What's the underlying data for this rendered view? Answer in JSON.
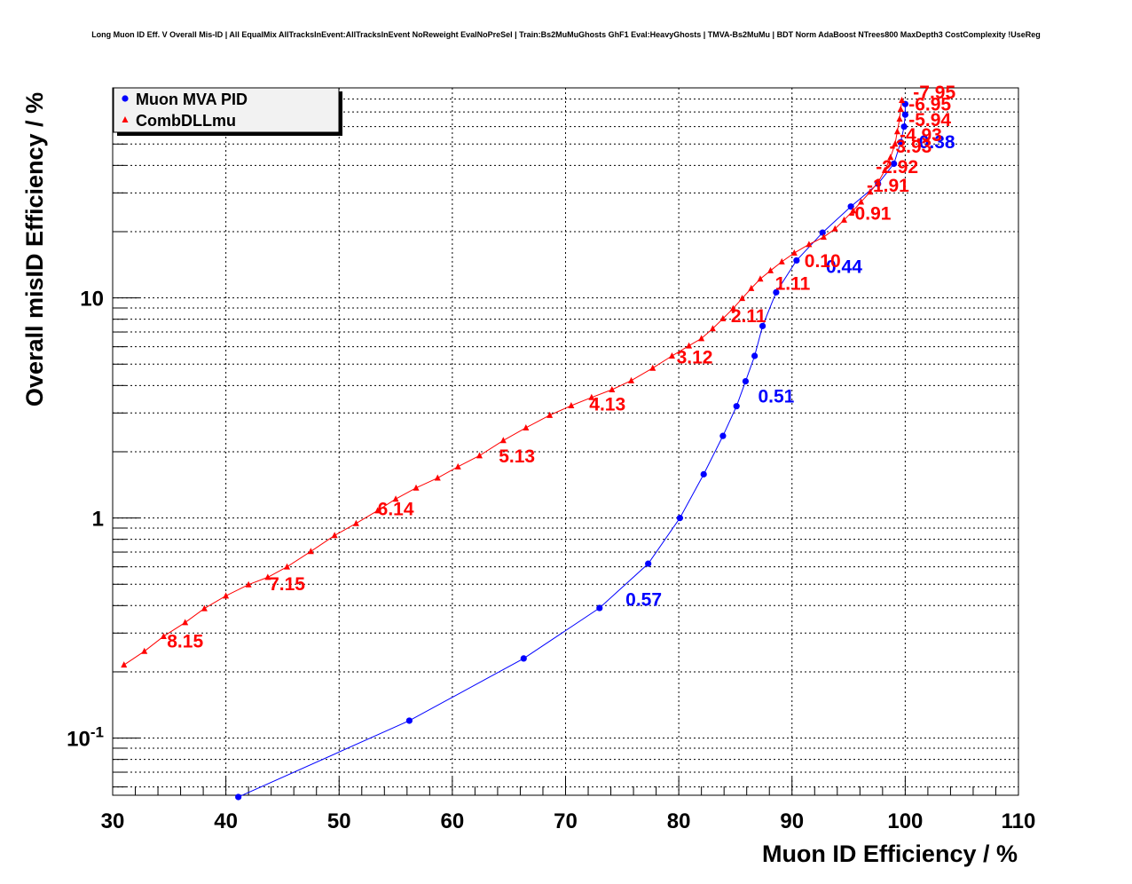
{
  "chart_data": {
    "type": "line",
    "title": "Long Muon ID Eff. V Overall Mis-ID | All EqualMix AllTracksInEvent:AllTracksInEvent NoReweight EvalNoPreSel | Train:Bs2MuMuGhosts GhF1 Eval:HeavyGhosts | TMVA-Bs2MuMu | BDT Norm AdaBoost NTrees800 MaxDepth3 CostComplexity !UseReg",
    "xlabel": "Muon ID Efficiency / %",
    "ylabel": "Overall misID Efficiency / %",
    "xlim": [
      30,
      110
    ],
    "ylim": [
      0.055,
      90
    ],
    "yscale": "log",
    "grid": true,
    "legend_position": "top-left",
    "x_ticks": [
      "30",
      "40",
      "50",
      "60",
      "70",
      "80",
      "90",
      "100",
      "110"
    ],
    "y_ticks": [
      {
        "value": 0.1,
        "mantissa": "10",
        "exponent": "-1"
      },
      {
        "value": 1,
        "mantissa": "1",
        "exponent": ""
      },
      {
        "value": 10,
        "mantissa": "10",
        "exponent": ""
      }
    ],
    "series": [
      {
        "name": "Muon MVA PID",
        "color": "#0000ff",
        "marker": "circle",
        "points": [
          [
            41.1,
            0.054
          ],
          [
            56.2,
            0.12
          ],
          [
            66.3,
            0.23
          ],
          [
            73.0,
            0.39
          ],
          [
            77.3,
            0.62
          ],
          [
            80.1,
            1.0
          ],
          [
            82.2,
            1.58
          ],
          [
            83.9,
            2.36
          ],
          [
            85.1,
            3.22
          ],
          [
            85.9,
            4.18
          ],
          [
            86.7,
            5.45
          ],
          [
            87.4,
            7.45
          ],
          [
            88.6,
            10.6
          ],
          [
            90.4,
            14.8
          ],
          [
            92.7,
            19.8
          ],
          [
            95.2,
            26.0
          ],
          [
            97.6,
            33.0
          ],
          [
            99.0,
            40.7
          ],
          [
            99.6,
            51.0
          ],
          [
            99.9,
            60.0
          ],
          [
            100.0,
            68.0
          ],
          [
            100.0,
            76.0
          ]
        ],
        "labels": [
          {
            "text": "0.57",
            "x": 75.3,
            "y": 0.4
          },
          {
            "text": "0.51",
            "x": 87.0,
            "y": 3.35
          },
          {
            "text": "0.44",
            "x": 93.0,
            "y": 13.0
          },
          {
            "text": "0.38",
            "x": 101.2,
            "y": 47.8
          }
        ]
      },
      {
        "name": "CombDLLmu",
        "color": "#ff0000",
        "marker": "triangle",
        "points": [
          [
            31.0,
            0.215
          ],
          [
            32.8,
            0.248
          ],
          [
            34.5,
            0.29
          ],
          [
            36.4,
            0.335
          ],
          [
            38.1,
            0.388
          ],
          [
            40.0,
            0.443
          ],
          [
            42.0,
            0.498
          ],
          [
            43.7,
            0.538
          ],
          [
            45.4,
            0.6
          ],
          [
            47.5,
            0.705
          ],
          [
            49.6,
            0.833
          ],
          [
            51.5,
            0.945
          ],
          [
            53.4,
            1.08
          ],
          [
            55.0,
            1.22
          ],
          [
            56.8,
            1.37
          ],
          [
            58.7,
            1.52
          ],
          [
            60.5,
            1.71
          ],
          [
            62.4,
            1.92
          ],
          [
            64.5,
            2.25
          ],
          [
            66.5,
            2.57
          ],
          [
            68.6,
            2.93
          ],
          [
            70.5,
            3.24
          ],
          [
            72.3,
            3.53
          ],
          [
            74.1,
            3.83
          ],
          [
            75.8,
            4.21
          ],
          [
            77.7,
            4.8
          ],
          [
            79.4,
            5.45
          ],
          [
            80.9,
            6.06
          ],
          [
            82.0,
            6.54
          ],
          [
            83.0,
            7.25
          ],
          [
            83.9,
            8.05
          ],
          [
            84.8,
            8.95
          ],
          [
            85.6,
            9.95
          ],
          [
            86.4,
            11.05
          ],
          [
            87.2,
            12.2
          ],
          [
            88.1,
            13.3
          ],
          [
            89.1,
            14.6
          ],
          [
            90.2,
            16.0
          ],
          [
            91.5,
            17.5
          ],
          [
            92.8,
            18.9
          ],
          [
            93.8,
            20.6
          ],
          [
            94.6,
            22.6
          ],
          [
            95.4,
            24.9
          ],
          [
            96.1,
            27.3
          ],
          [
            96.9,
            30.3
          ],
          [
            97.6,
            33.5
          ],
          [
            98.2,
            38.0
          ],
          [
            98.7,
            43.5
          ],
          [
            99.1,
            50.0
          ],
          [
            99.3,
            57.0
          ],
          [
            99.5,
            65.0
          ],
          [
            99.6,
            72.0
          ],
          [
            99.7,
            79.0
          ]
        ],
        "labels": [
          {
            "text": "8.15",
            "x": 34.8,
            "y": 0.258
          },
          {
            "text": "7.15",
            "x": 43.8,
            "y": 0.47
          },
          {
            "text": "6.14",
            "x": 53.4,
            "y": 1.03
          },
          {
            "text": "5.13",
            "x": 64.1,
            "y": 1.79
          },
          {
            "text": "4.13",
            "x": 72.1,
            "y": 3.08
          },
          {
            "text": "3.12",
            "x": 79.8,
            "y": 5.04
          },
          {
            "text": "2.11",
            "x": 84.6,
            "y": 7.75
          },
          {
            "text": "1.11",
            "x": 88.5,
            "y": 10.9
          },
          {
            "text": "0.10",
            "x": 91.1,
            "y": 13.8
          },
          {
            "text": "-0.91",
            "x": 95.0,
            "y": 22.7
          },
          {
            "text": "-1.91",
            "x": 96.6,
            "y": 30.3
          },
          {
            "text": "-2.92",
            "x": 97.4,
            "y": 36.9
          },
          {
            "text": "-3.93",
            "x": 98.6,
            "y": 45.6
          },
          {
            "text": "-4.93",
            "x": 99.5,
            "y": 51.6
          },
          {
            "text": "-5.94",
            "x": 100.3,
            "y": 60.4
          },
          {
            "text": "-6.95",
            "x": 100.3,
            "y": 71.0
          },
          {
            "text": "-7.95",
            "x": 100.7,
            "y": 80.5
          }
        ]
      }
    ]
  }
}
